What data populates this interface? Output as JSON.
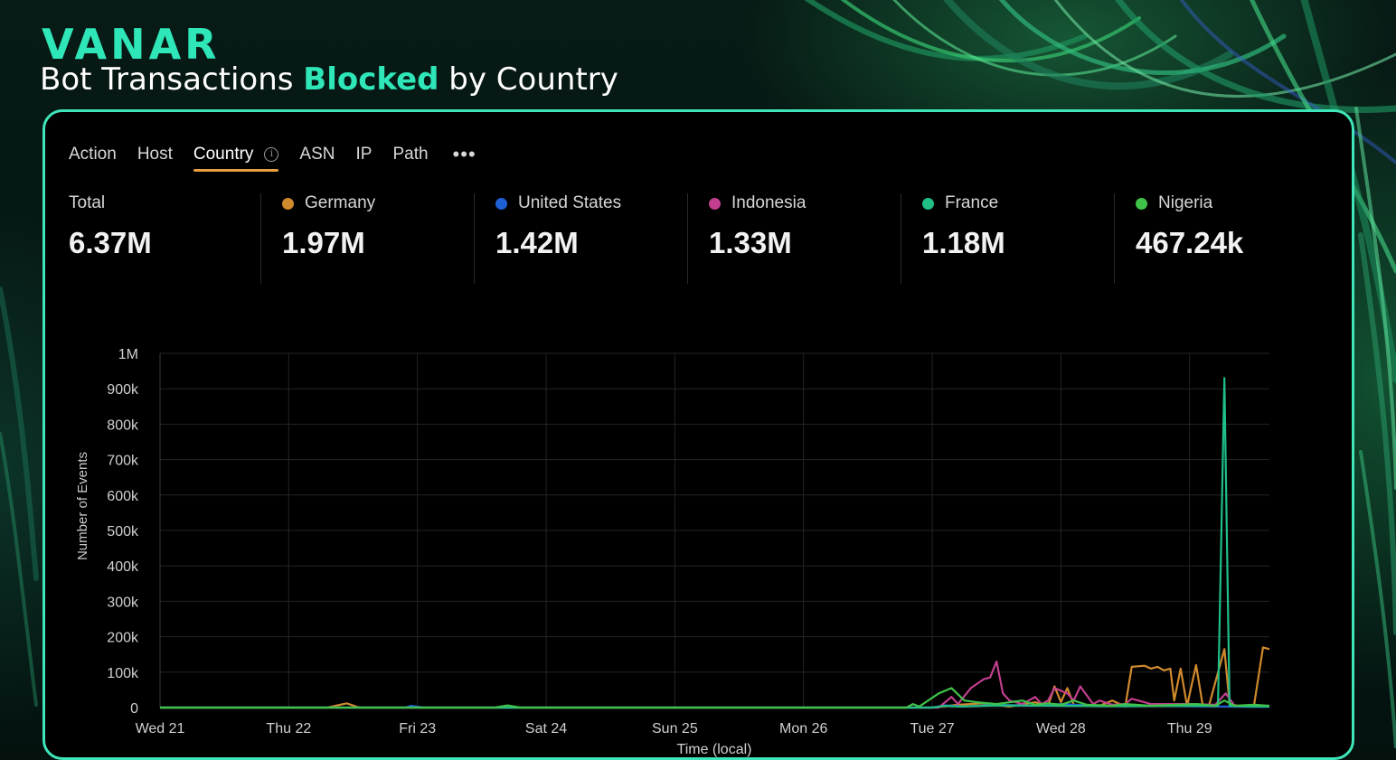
{
  "brand": {
    "logo_text": "VANAR",
    "headline_prefix": "Bot Transactions ",
    "headline_accent": "Blocked",
    "headline_suffix": " by Country",
    "accent_color": "#2ee6b8"
  },
  "tabs": [
    {
      "label": "Action",
      "active": false
    },
    {
      "label": "Host",
      "active": false
    },
    {
      "label": "Country",
      "active": true,
      "icon": "info-icon"
    },
    {
      "label": "ASN",
      "active": false
    },
    {
      "label": "IP",
      "active": false
    },
    {
      "label": "Path",
      "active": false
    },
    {
      "label": "•••",
      "active": false,
      "icon": "more-icon"
    }
  ],
  "stats": [
    {
      "label": "Total",
      "value": "6.37M",
      "color": null
    },
    {
      "label": "Germany",
      "value": "1.97M",
      "color": "#d08a2e"
    },
    {
      "label": "United States",
      "value": "1.42M",
      "color": "#1f5fd6"
    },
    {
      "label": "Indonesia",
      "value": "1.33M",
      "color": "#c23f8f"
    },
    {
      "label": "France",
      "value": "1.18M",
      "color": "#1fbf86"
    },
    {
      "label": "Nigeria",
      "value": "467.24k",
      "color": "#3fc24a"
    }
  ],
  "chart_data": {
    "type": "line",
    "ylabel": "Number of Events",
    "xlabel": "Time (local)",
    "ylim": [
      0,
      1000000
    ],
    "yticks": [
      {
        "v": 0,
        "label": "0"
      },
      {
        "v": 100000,
        "label": "100k"
      },
      {
        "v": 200000,
        "label": "200k"
      },
      {
        "v": 300000,
        "label": "300k"
      },
      {
        "v": 400000,
        "label": "400k"
      },
      {
        "v": 500000,
        "label": "500k"
      },
      {
        "v": 600000,
        "label": "600k"
      },
      {
        "v": 700000,
        "label": "700k"
      },
      {
        "v": 800000,
        "label": "800k"
      },
      {
        "v": 900000,
        "label": "900k"
      },
      {
        "v": 1000000,
        "label": "1M"
      }
    ],
    "xlim": [
      0,
      8.62
    ],
    "xticks": [
      {
        "v": 0,
        "label": "Wed 21"
      },
      {
        "v": 1,
        "label": "Thu 22"
      },
      {
        "v": 2,
        "label": "Fri 23"
      },
      {
        "v": 3,
        "label": "Sat 24"
      },
      {
        "v": 4,
        "label": "Sun 25"
      },
      {
        "v": 5,
        "label": "Mon 26"
      },
      {
        "v": 6,
        "label": "Tue 27"
      },
      {
        "v": 7,
        "label": "Wed 28"
      },
      {
        "v": 8,
        "label": "Thu 29"
      }
    ],
    "grid": true,
    "series": [
      {
        "name": "Germany",
        "color": "#d08a2e",
        "points": [
          [
            0,
            0
          ],
          [
            1.3,
            0
          ],
          [
            1.45,
            12000
          ],
          [
            1.55,
            0
          ],
          [
            6,
            0
          ],
          [
            6.2,
            8000
          ],
          [
            6.4,
            12000
          ],
          [
            6.6,
            3000
          ],
          [
            6.8,
            15000
          ],
          [
            6.9,
            5000
          ],
          [
            6.95,
            60000
          ],
          [
            7.0,
            15000
          ],
          [
            7.05,
            55000
          ],
          [
            7.1,
            8000
          ],
          [
            7.3,
            5000
          ],
          [
            7.4,
            20000
          ],
          [
            7.5,
            3000
          ],
          [
            7.55,
            115000
          ],
          [
            7.65,
            118000
          ],
          [
            7.7,
            110000
          ],
          [
            7.75,
            115000
          ],
          [
            7.8,
            105000
          ],
          [
            7.85,
            110000
          ],
          [
            7.88,
            20000
          ],
          [
            7.93,
            110000
          ],
          [
            7.98,
            5000
          ],
          [
            8.05,
            120000
          ],
          [
            8.1,
            10000
          ],
          [
            8.15,
            5000
          ],
          [
            8.27,
            165000
          ],
          [
            8.31,
            10000
          ],
          [
            8.4,
            3000
          ],
          [
            8.5,
            5000
          ],
          [
            8.57,
            170000
          ],
          [
            8.62,
            165000
          ]
        ]
      },
      {
        "name": "United States",
        "color": "#1f5fd6",
        "points": [
          [
            0,
            0
          ],
          [
            1.9,
            0
          ],
          [
            1.95,
            5000
          ],
          [
            2.05,
            0
          ],
          [
            6,
            0
          ],
          [
            6.1,
            6000
          ],
          [
            6.25,
            3000
          ],
          [
            6.5,
            8000
          ],
          [
            6.8,
            5000
          ],
          [
            7.0,
            10000
          ],
          [
            7.3,
            4000
          ],
          [
            7.6,
            6000
          ],
          [
            8.0,
            4000
          ],
          [
            8.25,
            3000
          ],
          [
            8.62,
            2000
          ]
        ]
      },
      {
        "name": "Indonesia",
        "color": "#c23f8f",
        "points": [
          [
            0,
            0
          ],
          [
            6.05,
            0
          ],
          [
            6.15,
            30000
          ],
          [
            6.2,
            10000
          ],
          [
            6.3,
            55000
          ],
          [
            6.4,
            80000
          ],
          [
            6.45,
            85000
          ],
          [
            6.5,
            130000
          ],
          [
            6.55,
            40000
          ],
          [
            6.6,
            20000
          ],
          [
            6.7,
            10000
          ],
          [
            6.8,
            30000
          ],
          [
            6.85,
            10000
          ],
          [
            6.9,
            20000
          ],
          [
            6.95,
            55000
          ],
          [
            7.05,
            40000
          ],
          [
            7.1,
            20000
          ],
          [
            7.15,
            60000
          ],
          [
            7.25,
            10000
          ],
          [
            7.3,
            20000
          ],
          [
            7.4,
            8000
          ],
          [
            7.5,
            10000
          ],
          [
            7.55,
            25000
          ],
          [
            7.7,
            10000
          ],
          [
            8.0,
            10000
          ],
          [
            8.2,
            8000
          ],
          [
            8.28,
            40000
          ],
          [
            8.35,
            5000
          ],
          [
            8.62,
            5000
          ]
        ]
      },
      {
        "name": "France",
        "color": "#1fbf86",
        "points": [
          [
            0,
            0
          ],
          [
            6,
            0
          ],
          [
            6.1,
            5000
          ],
          [
            6.2,
            3000
          ],
          [
            6.5,
            6000
          ],
          [
            7.0,
            5000
          ],
          [
            7.5,
            4000
          ],
          [
            8.0,
            5000
          ],
          [
            8.22,
            5000
          ],
          [
            8.27,
            930000
          ],
          [
            8.31,
            5000
          ],
          [
            8.5,
            3000
          ],
          [
            8.62,
            3000
          ]
        ]
      },
      {
        "name": "Nigeria",
        "color": "#3fc24a",
        "points": [
          [
            0,
            0
          ],
          [
            2.6,
            0
          ],
          [
            2.7,
            6000
          ],
          [
            2.8,
            0
          ],
          [
            5.8,
            0
          ],
          [
            5.85,
            10000
          ],
          [
            5.9,
            3000
          ],
          [
            6.05,
            40000
          ],
          [
            6.15,
            55000
          ],
          [
            6.25,
            20000
          ],
          [
            6.35,
            15000
          ],
          [
            6.5,
            10000
          ],
          [
            6.7,
            20000
          ],
          [
            6.8,
            8000
          ],
          [
            6.9,
            12000
          ],
          [
            7.0,
            8000
          ],
          [
            7.1,
            20000
          ],
          [
            7.2,
            8000
          ],
          [
            7.4,
            5000
          ],
          [
            7.5,
            10000
          ],
          [
            7.7,
            5000
          ],
          [
            7.9,
            8000
          ],
          [
            8.05,
            10000
          ],
          [
            8.2,
            5000
          ],
          [
            8.27,
            20000
          ],
          [
            8.35,
            5000
          ],
          [
            8.5,
            8000
          ],
          [
            8.62,
            5000
          ]
        ]
      }
    ]
  }
}
